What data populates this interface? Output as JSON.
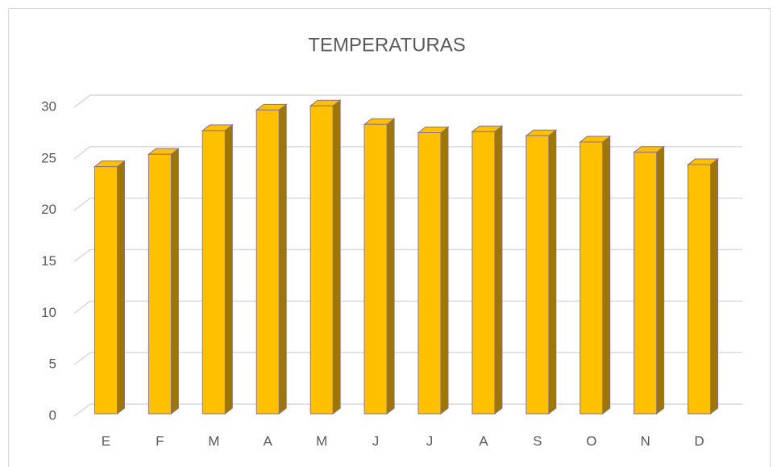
{
  "chart_data": {
    "type": "bar3d",
    "title": "TEMPERATURAS",
    "categories": [
      "E",
      "F",
      "M",
      "A",
      "M",
      "J",
      "J",
      "A",
      "S",
      "O",
      "N",
      "D"
    ],
    "values": [
      24,
      25.2,
      27.5,
      29.5,
      29.9,
      28.1,
      27.3,
      27.4,
      27,
      26.4,
      25.4,
      24.2
    ],
    "color": "#ffc000",
    "ylim": [
      0,
      30
    ],
    "yticks": [
      0,
      5,
      10,
      15,
      20,
      25,
      30
    ],
    "grid": true
  }
}
